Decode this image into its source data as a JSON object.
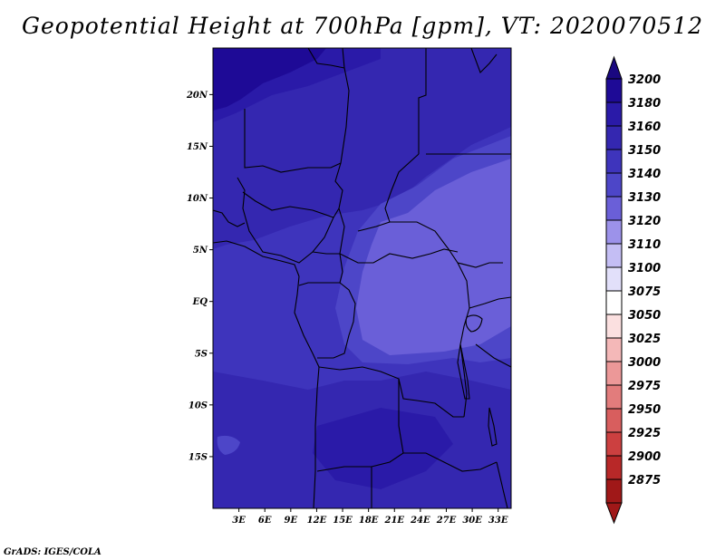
{
  "title": "Geopotential Height at 700hPa [gpm], VT: 2020070512",
  "credit": "GrADS: IGES/COLA",
  "map": {
    "lon_range": [
      0,
      34.5
    ],
    "lat_range": [
      -20,
      24.5
    ],
    "lat_ticks": [
      {
        "value": 20,
        "label": "20N"
      },
      {
        "value": 15,
        "label": "15N"
      },
      {
        "value": 10,
        "label": "10N"
      },
      {
        "value": 5,
        "label": "5N"
      },
      {
        "value": 0,
        "label": "EQ"
      },
      {
        "value": -5,
        "label": "5S"
      },
      {
        "value": -10,
        "label": "10S"
      },
      {
        "value": -15,
        "label": "15S"
      }
    ],
    "lon_ticks": [
      {
        "value": 3,
        "label": "3E"
      },
      {
        "value": 6,
        "label": "6E"
      },
      {
        "value": 9,
        "label": "9E"
      },
      {
        "value": 12,
        "label": "12E"
      },
      {
        "value": 15,
        "label": "15E"
      },
      {
        "value": 18,
        "label": "18E"
      },
      {
        "value": 21,
        "label": "21E"
      },
      {
        "value": 24,
        "label": "24E"
      },
      {
        "value": 27,
        "label": "27E"
      },
      {
        "value": 30,
        "label": "30E"
      },
      {
        "value": 33,
        "label": "33E"
      }
    ]
  },
  "colorbar": {
    "levels": [
      {
        "label": "3200",
        "color": "#1e0a96"
      },
      {
        "label": "3180",
        "color": "#2a1aa8"
      },
      {
        "label": "3160",
        "color": "#3427b0"
      },
      {
        "label": "3150",
        "color": "#3e34bc"
      },
      {
        "label": "3140",
        "color": "#4d46c8"
      },
      {
        "label": "3130",
        "color": "#6a5fd8"
      },
      {
        "label": "3120",
        "color": "#9c92ea"
      },
      {
        "label": "3110",
        "color": "#c4bef4"
      },
      {
        "label": "3100",
        "color": "#e2e0fa"
      },
      {
        "label": "3075",
        "color": "#ffffff"
      },
      {
        "label": "3050",
        "color": "#fbe0e0"
      },
      {
        "label": "3025",
        "color": "#f4b8b8"
      },
      {
        "label": "3000",
        "color": "#ec9898"
      },
      {
        "label": "2975",
        "color": "#e27c7c"
      },
      {
        "label": "2950",
        "color": "#d85e5e"
      },
      {
        "label": "2925",
        "color": "#cc4040"
      },
      {
        "label": "2900",
        "color": "#b82828"
      },
      {
        "label": "2875",
        "color": "#a01818"
      }
    ],
    "top_arrow_color": "#1a0880",
    "bottom_arrow_color": "#a01818"
  },
  "field_colors": {
    "c3200": "#1e0a96",
    "c3180": "#2a1aa8",
    "c3160": "#3427b0",
    "c3150": "#3e34bc",
    "c3140": "#4d46c8",
    "c3130": "#6a5fd8"
  }
}
